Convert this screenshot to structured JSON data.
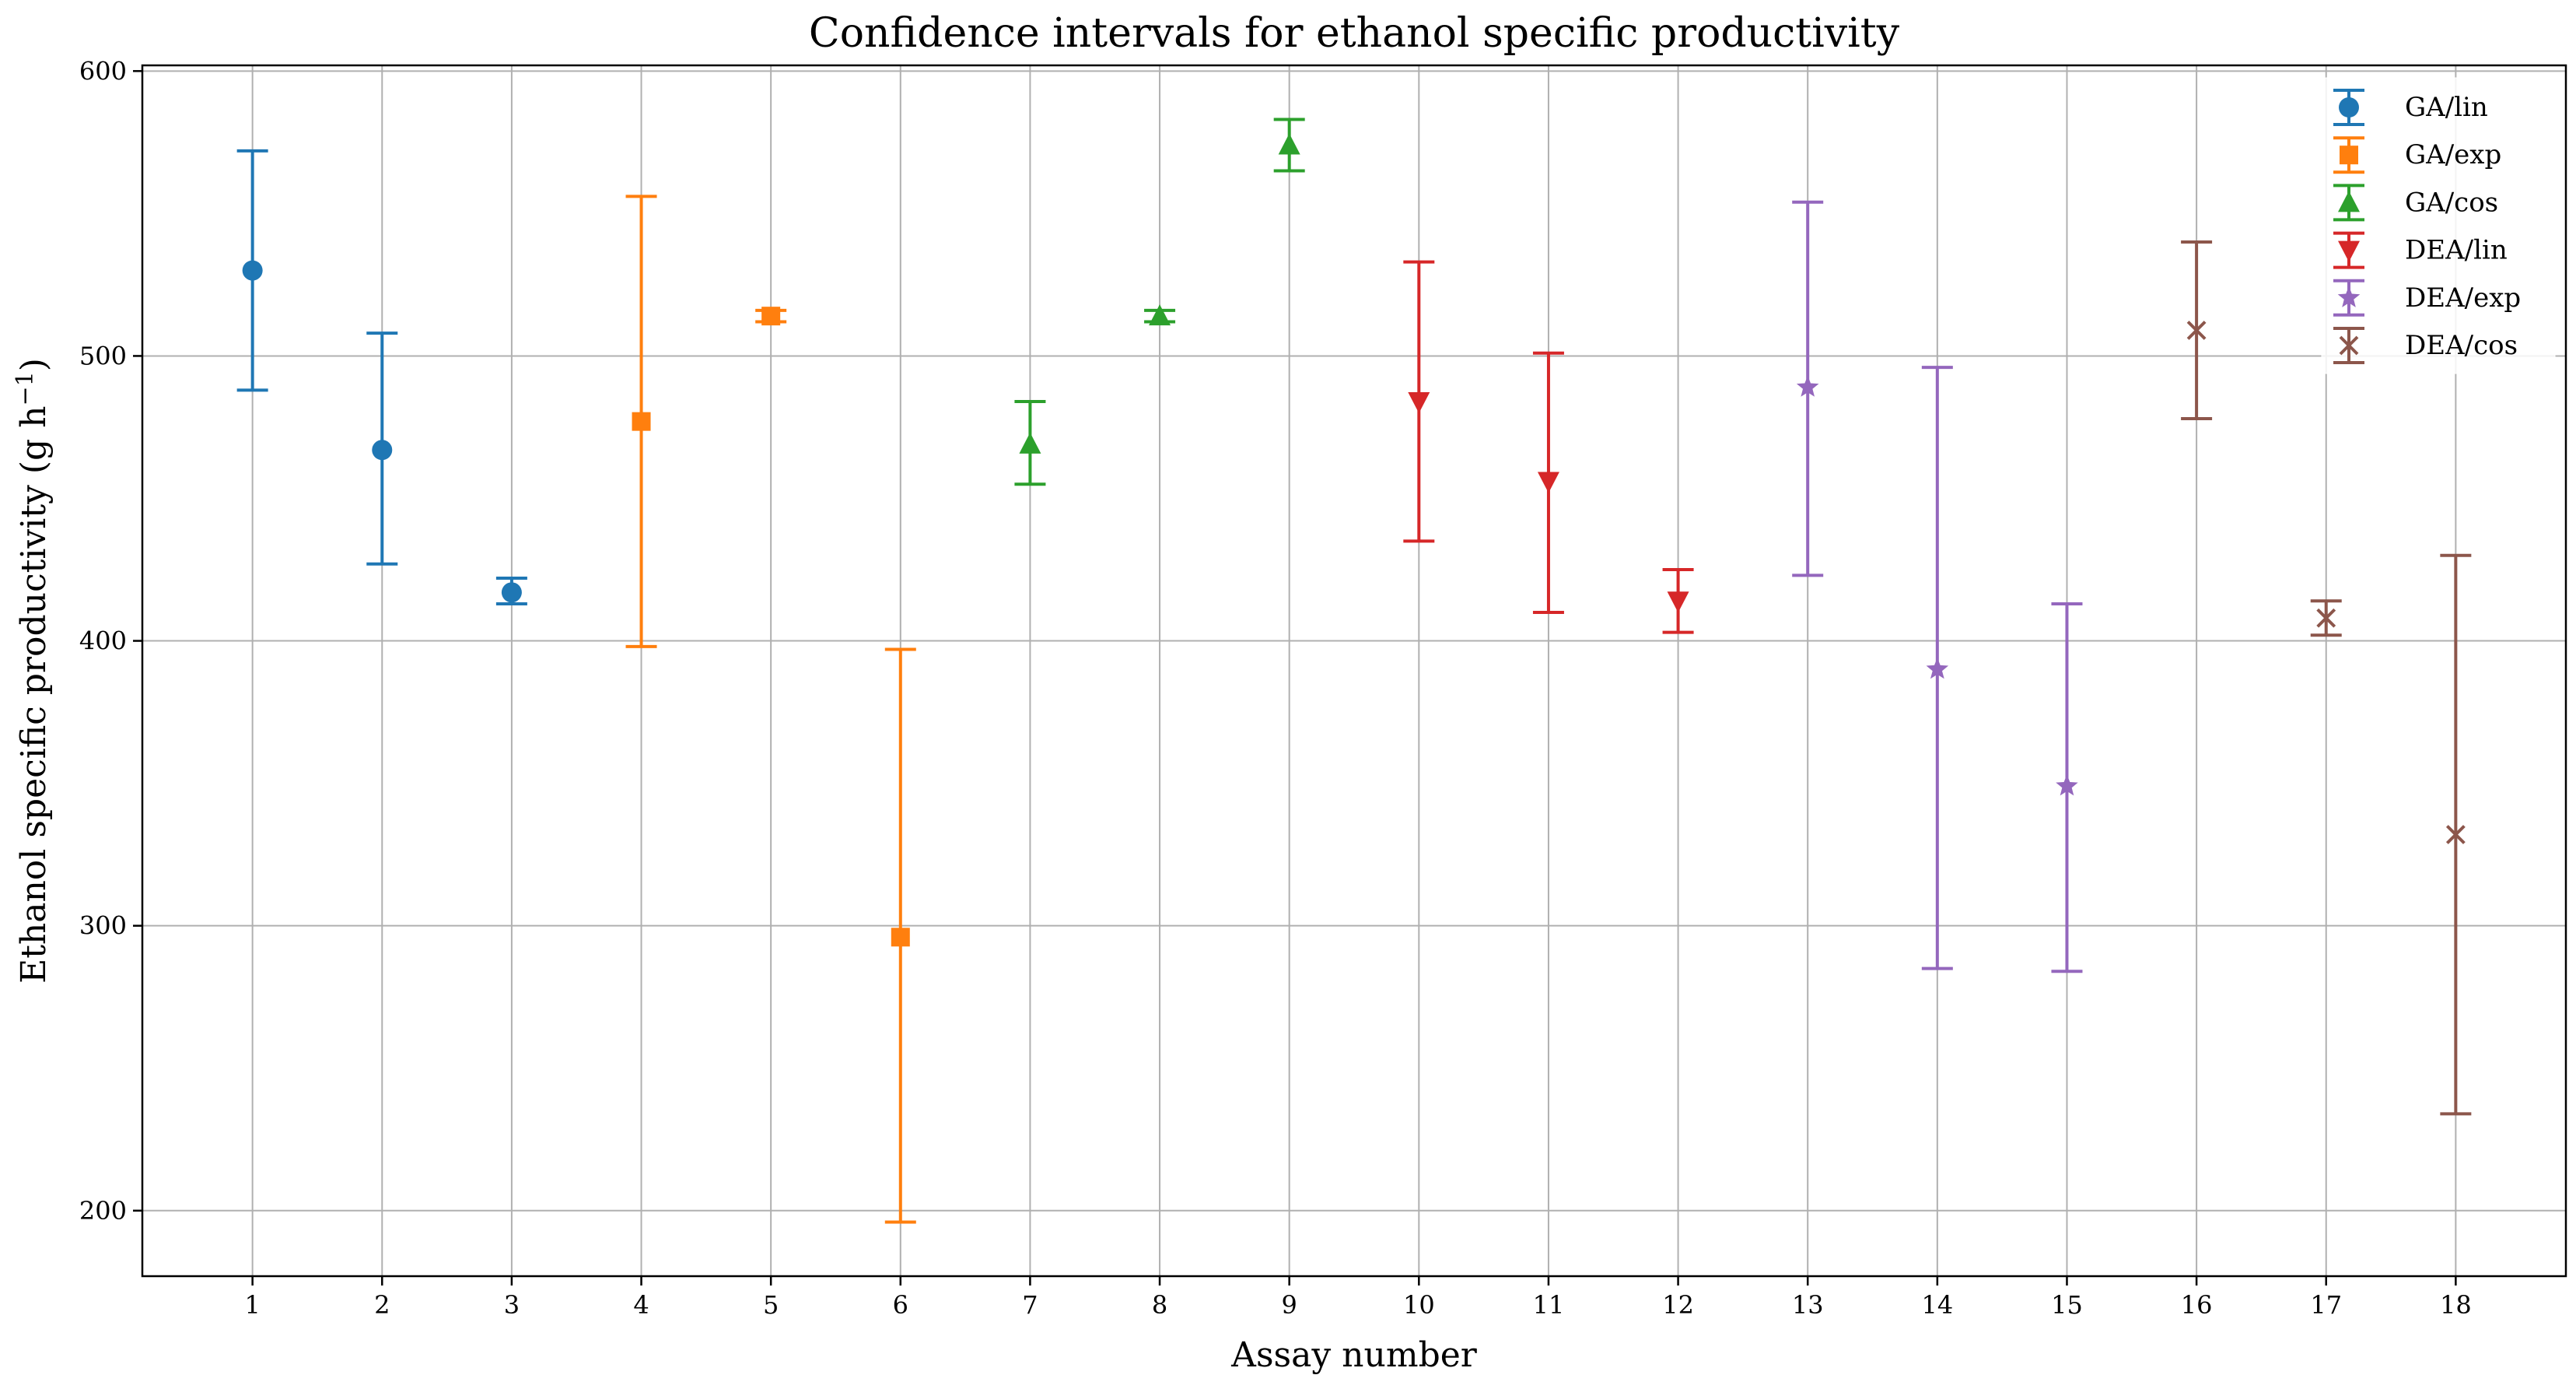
{
  "chart_data": {
    "type": "scatter",
    "title": "Confidence intervals for ethanol specific productivity",
    "xlabel": "Assay number",
    "ylabel": "Ethanol specific productivity (g h",
    "ylabel_sup": "−1",
    "ylabel_close": ")",
    "xlim": [
      0.15,
      18.85
    ],
    "ylim": [
      177,
      602
    ],
    "x_ticks": [
      1,
      2,
      3,
      4,
      5,
      6,
      7,
      8,
      9,
      10,
      11,
      12,
      13,
      14,
      15,
      16,
      17,
      18
    ],
    "y_ticks": [
      200,
      300,
      400,
      500,
      600
    ],
    "grid": true,
    "legend_position": "top-right",
    "series": [
      {
        "name": "GA/lin",
        "color": "#1f77b4",
        "marker": "circle",
        "points": [
          {
            "x": 1,
            "y": 530,
            "lower": 488,
            "upper": 572
          },
          {
            "x": 2,
            "y": 467,
            "lower": 427,
            "upper": 508
          },
          {
            "x": 3,
            "y": 417,
            "lower": 413,
            "upper": 422
          }
        ]
      },
      {
        "name": "GA/exp",
        "color": "#ff7f0e",
        "marker": "square",
        "points": [
          {
            "x": 4,
            "y": 477,
            "lower": 398,
            "upper": 556
          },
          {
            "x": 5,
            "y": 514,
            "lower": 512,
            "upper": 516
          },
          {
            "x": 6,
            "y": 296,
            "lower": 196,
            "upper": 397
          }
        ]
      },
      {
        "name": "GA/cos",
        "color": "#2ca02c",
        "marker": "triangle-up",
        "points": [
          {
            "x": 7,
            "y": 469,
            "lower": 455,
            "upper": 484
          },
          {
            "x": 8,
            "y": 514,
            "lower": 512,
            "upper": 516
          },
          {
            "x": 9,
            "y": 574,
            "lower": 565,
            "upper": 583
          }
        ]
      },
      {
        "name": "DEA/lin",
        "color": "#d62728",
        "marker": "triangle-down",
        "points": [
          {
            "x": 10,
            "y": 484,
            "lower": 435,
            "upper": 533
          },
          {
            "x": 11,
            "y": 456,
            "lower": 410,
            "upper": 501
          },
          {
            "x": 12,
            "y": 414,
            "lower": 403,
            "upper": 425
          }
        ]
      },
      {
        "name": "DEA/exp",
        "color": "#9467bd",
        "marker": "star",
        "points": [
          {
            "x": 13,
            "y": 489,
            "lower": 423,
            "upper": 554
          },
          {
            "x": 14,
            "y": 390,
            "lower": 285,
            "upper": 496
          },
          {
            "x": 15,
            "y": 349,
            "lower": 284,
            "upper": 413
          }
        ]
      },
      {
        "name": "DEA/cos",
        "color": "#8c564b",
        "marker": "x",
        "points": [
          {
            "x": 16,
            "y": 509,
            "lower": 478,
            "upper": 540
          },
          {
            "x": 17,
            "y": 408,
            "lower": 402,
            "upper": 414
          },
          {
            "x": 18,
            "y": 332,
            "lower": 234,
            "upper": 430
          }
        ]
      }
    ]
  }
}
